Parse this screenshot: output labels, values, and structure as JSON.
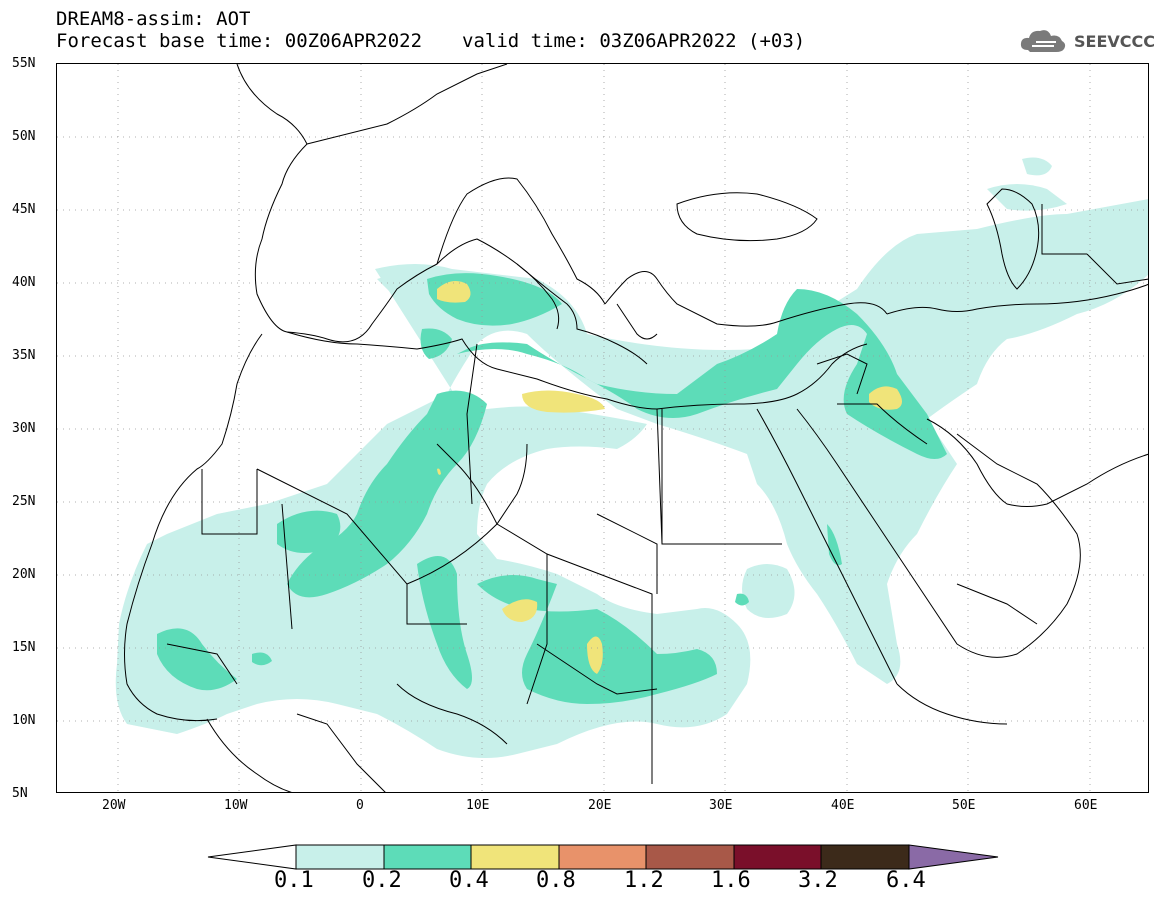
{
  "header": {
    "title_line1": "DREAM8-assim: AOT",
    "title_line2_base": "Forecast base time: 00Z06APR2022",
    "title_line2_valid": "valid time: 03Z06APR2022 (+03)"
  },
  "logo": {
    "text": "SEEVCCC",
    "icon": "cloud-logo-icon"
  },
  "map": {
    "y_ticks": [
      "55N",
      "50N",
      "45N",
      "40N",
      "35N",
      "30N",
      "25N",
      "20N",
      "15N",
      "10N",
      "5N"
    ],
    "x_ticks": [
      "20W",
      "10W",
      "0",
      "10E",
      "20E",
      "30E",
      "40E",
      "50E",
      "60E"
    ],
    "lat_range": [
      5,
      55
    ],
    "lon_range": [
      -25,
      65
    ]
  },
  "colorbar": {
    "labels": [
      "0.1",
      "0.2",
      "0.4",
      "0.8",
      "1.2",
      "1.6",
      "3.2",
      "6.4"
    ],
    "colors": [
      "#c8f0ea",
      "#5ddcb8",
      "#f0e47a",
      "#e8926a",
      "#a85848",
      "#7a0f2a",
      "#3c2a1a",
      "#8a6aa6"
    ],
    "below_color": "#ffffff"
  },
  "colors": {
    "aot_low": "#c8f0ea",
    "aot_mid": "#5ddcb8",
    "aot_high": "#f0e47a",
    "border": "#000000",
    "grid": "#888888"
  }
}
